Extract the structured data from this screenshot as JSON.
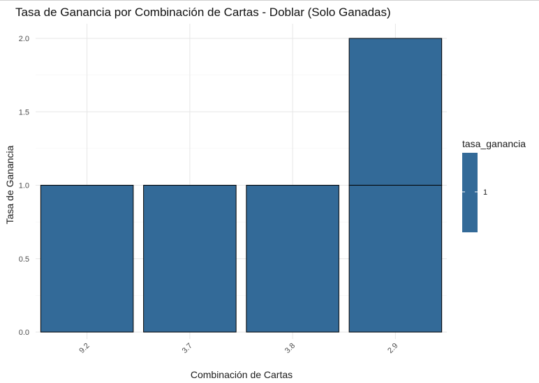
{
  "chart_data": {
    "type": "bar",
    "title": "Tasa de Ganancia por Combinación de Cartas - Doblar (Solo Ganadas)",
    "xlabel": "Combinación de Cartas",
    "ylabel": "Tasa de Ganancia",
    "categories": [
      "9.2",
      "3.7",
      "3.8",
      "2.9"
    ],
    "values": [
      1,
      1,
      1,
      2
    ],
    "stack_segments": [
      [
        1
      ],
      [
        1
      ],
      [
        1
      ],
      [
        1,
        1
      ]
    ],
    "ylim": [
      0,
      2.1
    ],
    "yticks": [
      "0.0",
      "0.5",
      "1.0",
      "1.5",
      "2.0"
    ],
    "grid": true,
    "bar_color": "#336a98",
    "bar_outline": "#000000",
    "legend": {
      "title": "tasa_ganancia",
      "labels": [
        "1"
      ],
      "placement": "right"
    }
  }
}
